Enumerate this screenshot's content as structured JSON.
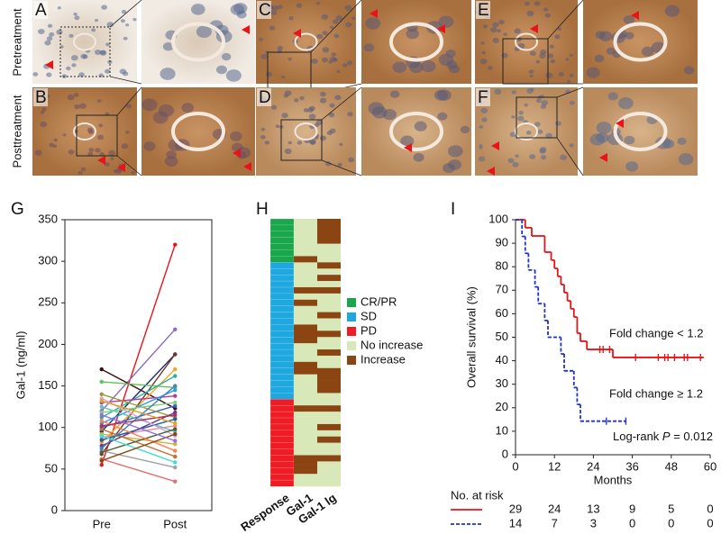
{
  "figure": {
    "panel_labels": [
      "A",
      "B",
      "C",
      "D",
      "E",
      "F",
      "G",
      "H",
      "I"
    ],
    "row_labels": [
      "Pretreatment",
      "Posttreatment"
    ]
  },
  "chart_data": [
    {
      "type": "line",
      "ylabel": "Gal-1 (ng/ml)",
      "categories": [
        "Pre",
        "Post"
      ],
      "ylim": [
        0,
        350
      ],
      "yticks": [
        0,
        50,
        100,
        150,
        200,
        250,
        300,
        350
      ],
      "series": [
        {
          "color": "#e8141a",
          "values": [
            55,
            320
          ]
        },
        {
          "color": "#8e6bbf",
          "values": [
            120,
            218
          ]
        },
        {
          "color": "#3b1010",
          "values": [
            170,
            123
          ]
        },
        {
          "color": "#1f2f6b",
          "values": [
            95,
            188
          ]
        },
        {
          "color": "#6b3a2a",
          "values": [
            68,
            188
          ]
        },
        {
          "color": "#5cc45c",
          "values": [
            155,
            148
          ]
        },
        {
          "color": "#f5a623",
          "values": [
            82,
            170
          ]
        },
        {
          "color": "#2ab0a0",
          "values": [
            112,
            162
          ]
        },
        {
          "color": "#c0399a",
          "values": [
            130,
            138
          ]
        },
        {
          "color": "#4060c8",
          "values": [
            100,
            126
          ]
        },
        {
          "color": "#9a9a30",
          "values": [
            140,
            112
          ]
        },
        {
          "color": "#f08aa0",
          "values": [
            88,
            102
          ]
        },
        {
          "color": "#a0a0a0",
          "values": [
            72,
            52
          ]
        },
        {
          "color": "#e07070",
          "values": [
            62,
            35
          ]
        },
        {
          "color": "#30a0e0",
          "values": [
            105,
            145
          ]
        },
        {
          "color": "#d0b040",
          "values": [
            92,
            80
          ]
        },
        {
          "color": "#7030a0",
          "values": [
            78,
            118
          ]
        },
        {
          "color": "#60c0c0",
          "values": [
            125,
            95
          ]
        },
        {
          "color": "#c07030",
          "values": [
            98,
            65
          ]
        },
        {
          "color": "#2060a0",
          "values": [
            85,
            110
          ]
        },
        {
          "color": "#80d080",
          "values": [
            118,
            130
          ]
        },
        {
          "color": "#e0a0d0",
          "values": [
            135,
            90
          ]
        },
        {
          "color": "#506030",
          "values": [
            70,
            98
          ]
        },
        {
          "color": "#ff7f50",
          "values": [
            108,
            72
          ]
        },
        {
          "color": "#4682b4",
          "values": [
            75,
            150
          ]
        },
        {
          "color": "#b03060",
          "values": [
            102,
            115
          ]
        },
        {
          "color": "#40e0d0",
          "values": [
            90,
            58
          ]
        },
        {
          "color": "#daa520",
          "values": [
            132,
            105
          ]
        },
        {
          "color": "#8b4513",
          "values": [
            60,
            92
          ]
        },
        {
          "color": "#9370db",
          "values": [
            115,
            84
          ]
        }
      ]
    },
    {
      "type": "heatmap",
      "columns": [
        "Response",
        "Gal-1",
        "Gal-1 lg"
      ],
      "legend": [
        {
          "name": "CR/PR",
          "color": "#1aa64a"
        },
        {
          "name": "SD",
          "color": "#1fa8e0"
        },
        {
          "name": "PD",
          "color": "#ee1c24"
        },
        {
          "name": "No increase",
          "color": "#d9e8b8"
        },
        {
          "name": "Increase",
          "color": "#8b4513"
        }
      ],
      "rows": [
        [
          0,
          3,
          4
        ],
        [
          0,
          3,
          4
        ],
        [
          0,
          3,
          4
        ],
        [
          0,
          3,
          4
        ],
        [
          0,
          3,
          3
        ],
        [
          0,
          3,
          3
        ],
        [
          0,
          4,
          3
        ],
        [
          1,
          3,
          4
        ],
        [
          1,
          3,
          3
        ],
        [
          1,
          3,
          4
        ],
        [
          1,
          3,
          3
        ],
        [
          1,
          4,
          4
        ],
        [
          1,
          3,
          3
        ],
        [
          1,
          4,
          3
        ],
        [
          1,
          3,
          3
        ],
        [
          1,
          3,
          4
        ],
        [
          1,
          3,
          3
        ],
        [
          1,
          4,
          3
        ],
        [
          1,
          4,
          4
        ],
        [
          1,
          4,
          3
        ],
        [
          1,
          3,
          3
        ],
        [
          1,
          3,
          4
        ],
        [
          1,
          3,
          3
        ],
        [
          1,
          4,
          3
        ],
        [
          1,
          4,
          4
        ],
        [
          1,
          3,
          4
        ],
        [
          1,
          3,
          4
        ],
        [
          1,
          3,
          4
        ],
        [
          1,
          3,
          3
        ],
        [
          2,
          3,
          3
        ],
        [
          2,
          4,
          4
        ],
        [
          2,
          3,
          3
        ],
        [
          2,
          3,
          3
        ],
        [
          2,
          3,
          4
        ],
        [
          2,
          3,
          3
        ],
        [
          2,
          3,
          4
        ],
        [
          2,
          3,
          3
        ],
        [
          2,
          3,
          3
        ],
        [
          2,
          4,
          4
        ],
        [
          2,
          4,
          3
        ],
        [
          2,
          4,
          3
        ],
        [
          2,
          3,
          3
        ],
        [
          2,
          3,
          3
        ]
      ]
    },
    {
      "type": "step",
      "xlabel": "Months",
      "ylabel": "Overall survival (%)",
      "xlim": [
        0,
        60
      ],
      "xticks": [
        0,
        12,
        24,
        36,
        48,
        60
      ],
      "ylim": [
        0,
        100
      ],
      "yticks": [
        0,
        10,
        20,
        30,
        40,
        50,
        60,
        70,
        80,
        90,
        100
      ],
      "series": [
        {
          "name": "Fold change < 1.2",
          "color": "#e8141a",
          "linestyle": "solid",
          "x": [
            0,
            3,
            5,
            9,
            11,
            12,
            13,
            14,
            15,
            16,
            17,
            18,
            19,
            20,
            22,
            30,
            58
          ],
          "values": [
            100,
            96.6,
            93.1,
            86.2,
            82.8,
            79.3,
            75.9,
            72.4,
            69,
            65.5,
            62.1,
            58.6,
            51.7,
            48.3,
            44.8,
            41.4,
            41.4
          ],
          "censor_x": [
            26,
            27,
            29,
            37,
            44,
            46,
            47,
            49,
            52,
            53,
            57
          ],
          "censor_values": [
            44.8,
            44.8,
            44.8,
            41.4,
            41.4,
            41.4,
            41.4,
            41.4,
            41.4,
            41.4,
            41.4
          ]
        },
        {
          "name": "Fold change ≥ 1.2",
          "color": "#2233cc",
          "linestyle": "dashed",
          "x": [
            0,
            2,
            3,
            4,
            6,
            7,
            9,
            10,
            14,
            15,
            18,
            19,
            20,
            34
          ],
          "values": [
            100,
            92.9,
            85.7,
            78.6,
            71.4,
            64.3,
            57.1,
            50,
            42.9,
            35.7,
            28.6,
            21.4,
            14.3,
            14.3
          ],
          "censor_x": [
            28,
            34
          ],
          "censor_values": [
            14.3,
            14.3
          ]
        }
      ],
      "annotation": {
        "text": "Log-rank ",
        "italic": "P",
        "value_text": " = 0.012"
      },
      "risk_table": {
        "title": "No. at risk",
        "rows": [
          [
            29,
            24,
            13,
            9,
            5,
            0
          ],
          [
            14,
            7,
            3,
            0,
            0,
            0
          ]
        ]
      }
    }
  ]
}
